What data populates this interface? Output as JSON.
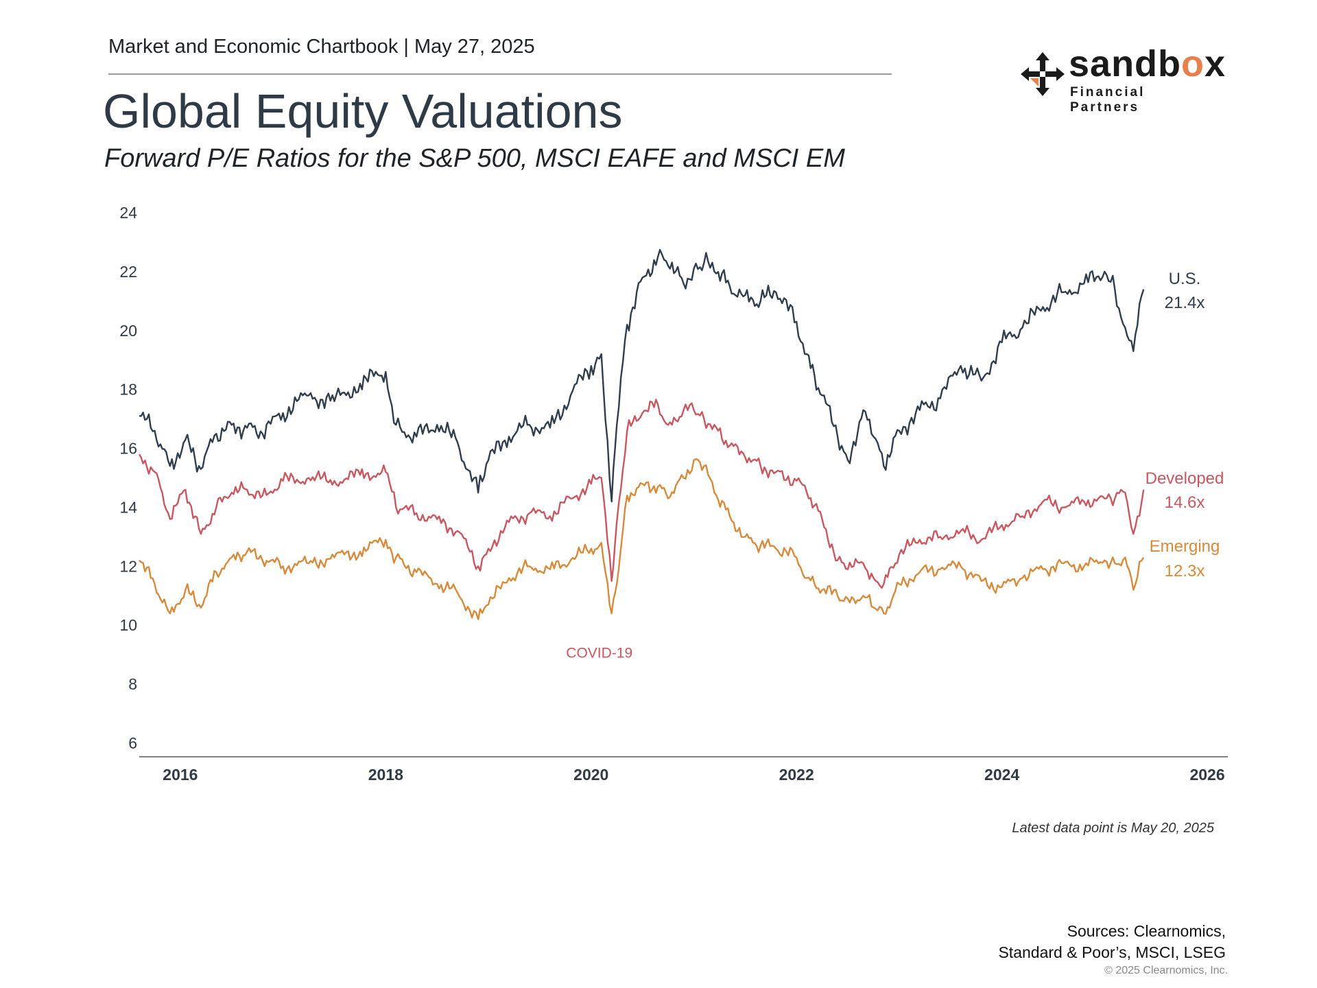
{
  "header": {
    "chartbook_line": "Market and Economic Chartbook | May 27, 2025",
    "title": "Global Equity Valuations",
    "subtitle": "Forward P/E Ratios for the S&P 500, MSCI EAFE and MSCI EM"
  },
  "logo": {
    "word_a": "sandb",
    "word_o": "o",
    "word_b": "x",
    "tagline": "Financial Partners",
    "icon": "four-arrows-icon",
    "accent_color": "#e8804e"
  },
  "chart_data": {
    "type": "line",
    "title": "Global Equity Valuations",
    "subtitle": "Forward P/E Ratios for the S&P 500, MSCI EAFE and MSCI EM",
    "xlabel": "",
    "ylabel": "",
    "x_ticks": [
      "2016",
      "2018",
      "2020",
      "2022",
      "2024",
      "2026"
    ],
    "y_ticks": [
      6,
      8,
      10,
      12,
      14,
      16,
      18,
      20,
      22,
      24
    ],
    "xlim": [
      2015.6,
      2026.2
    ],
    "ylim": [
      6,
      24
    ],
    "grid": false,
    "x": [
      2015.6,
      2015.75,
      2015.9,
      2016.05,
      2016.2,
      2016.35,
      2016.5,
      2016.65,
      2016.8,
      2017.0,
      2017.25,
      2017.5,
      2017.75,
      2018.0,
      2018.1,
      2018.3,
      2018.5,
      2018.7,
      2018.9,
      2019.0,
      2019.2,
      2019.4,
      2019.6,
      2019.8,
      2020.0,
      2020.1,
      2020.2,
      2020.25,
      2020.35,
      2020.5,
      2020.65,
      2020.75,
      2020.9,
      2021.0,
      2021.1,
      2021.2,
      2021.35,
      2021.5,
      2021.65,
      2021.8,
      2022.0,
      2022.1,
      2022.25,
      2022.4,
      2022.5,
      2022.65,
      2022.75,
      2022.85,
      2023.0,
      2023.2,
      2023.4,
      2023.6,
      2023.8,
      2024.0,
      2024.2,
      2024.4,
      2024.6,
      2024.8,
      2025.0,
      2025.1,
      2025.2,
      2025.28,
      2025.38
    ],
    "series": [
      {
        "name": "U.S.",
        "label": "U.S.",
        "value_label": "21.4x",
        "color": "#2f3d4c",
        "values": [
          17.1,
          16.6,
          15.4,
          16.3,
          15.3,
          16.5,
          16.8,
          16.7,
          16.5,
          17.2,
          17.8,
          17.6,
          18.2,
          18.6,
          16.8,
          16.4,
          16.8,
          16.2,
          14.5,
          15.6,
          16.4,
          16.8,
          16.7,
          17.8,
          18.8,
          19.2,
          14.2,
          16.8,
          20.2,
          21.8,
          22.5,
          22.2,
          21.6,
          22.1,
          22.3,
          22.0,
          21.5,
          21.2,
          21.0,
          21.3,
          20.3,
          19.2,
          17.8,
          16.4,
          15.6,
          17.3,
          16.4,
          15.4,
          16.6,
          17.3,
          17.7,
          18.8,
          18.3,
          19.6,
          20.1,
          20.8,
          21.3,
          21.6,
          22.0,
          21.4,
          20.1,
          19.3,
          21.4
        ]
      },
      {
        "name": "Developed",
        "label": "Developed",
        "value_label": "14.6x",
        "color": "#c9575f",
        "values": [
          15.8,
          15.2,
          13.6,
          14.6,
          13.1,
          14.0,
          14.5,
          14.6,
          14.4,
          14.9,
          15.0,
          14.9,
          15.1,
          15.2,
          14.0,
          13.8,
          13.6,
          13.2,
          12.0,
          12.6,
          13.5,
          13.8,
          13.7,
          14.3,
          14.8,
          15.0,
          11.5,
          13.5,
          16.6,
          17.2,
          17.5,
          16.8,
          17.3,
          17.3,
          17.0,
          16.8,
          16.1,
          15.7,
          15.4,
          15.2,
          14.9,
          14.5,
          13.6,
          12.2,
          11.9,
          12.1,
          11.6,
          11.4,
          12.4,
          12.9,
          13.0,
          13.2,
          12.9,
          13.4,
          13.7,
          14.2,
          14.0,
          14.2,
          14.3,
          14.3,
          14.5,
          13.1,
          14.6
        ]
      },
      {
        "name": "Emerging",
        "label": "Emerging",
        "value_label": "12.3x",
        "color": "#d68a3a",
        "values": [
          12.2,
          11.4,
          10.4,
          11.2,
          10.6,
          11.8,
          12.3,
          12.5,
          12.2,
          12.0,
          12.1,
          12.3,
          12.5,
          12.9,
          12.3,
          11.8,
          11.4,
          11.1,
          10.2,
          10.7,
          11.6,
          12.0,
          11.9,
          12.2,
          12.6,
          12.8,
          10.4,
          11.4,
          14.4,
          14.8,
          14.7,
          14.3,
          15.0,
          15.6,
          15.4,
          14.5,
          13.7,
          13.0,
          12.7,
          12.6,
          12.3,
          11.6,
          11.2,
          11.0,
          10.9,
          11.0,
          10.6,
          10.4,
          11.4,
          11.8,
          11.9,
          12.0,
          11.5,
          11.3,
          11.6,
          11.9,
          12.1,
          12.0,
          12.2,
          12.1,
          12.3,
          11.2,
          12.3
        ]
      }
    ],
    "annotations": [
      {
        "text": "COVID-19",
        "x": 2020.08,
        "y": 8.9,
        "color": "#c9575f"
      }
    ]
  },
  "footnote": "Latest data point is May 20, 2025",
  "sources": {
    "line1": "Sources: Clearnomics,",
    "line2": "Standard & Poor’s, MSCI, LSEG",
    "copyright": "© 2025 Clearnomics, Inc."
  }
}
